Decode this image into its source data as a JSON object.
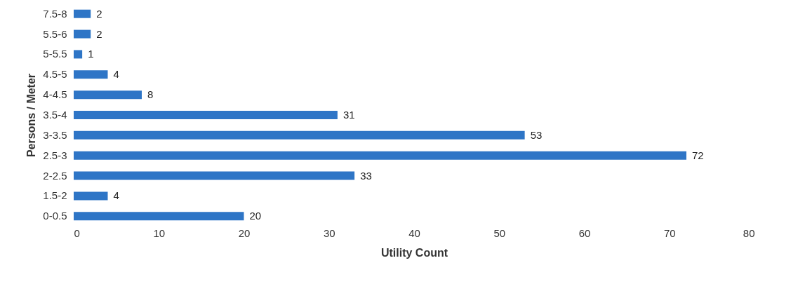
{
  "chart_data": {
    "type": "bar",
    "orientation": "horizontal",
    "xlabel": "Utility Count",
    "ylabel": "Persons / Meter",
    "categories": [
      "7.5-8",
      "5.5-6",
      "5-5.5",
      "4.5-5",
      "4-4.5",
      "3.5-4",
      "3-3.5",
      "2.5-3",
      "2-2.5",
      "1.5-2",
      "0-0.5"
    ],
    "values": [
      2,
      2,
      1,
      4,
      8,
      31,
      53,
      72,
      33,
      4,
      20
    ],
    "color": "#2e75c6",
    "xlim": [
      0,
      80
    ],
    "xticks": [
      0,
      10,
      20,
      30,
      40,
      50,
      60,
      70,
      80
    ],
    "data_labels": true,
    "grid": false
  }
}
